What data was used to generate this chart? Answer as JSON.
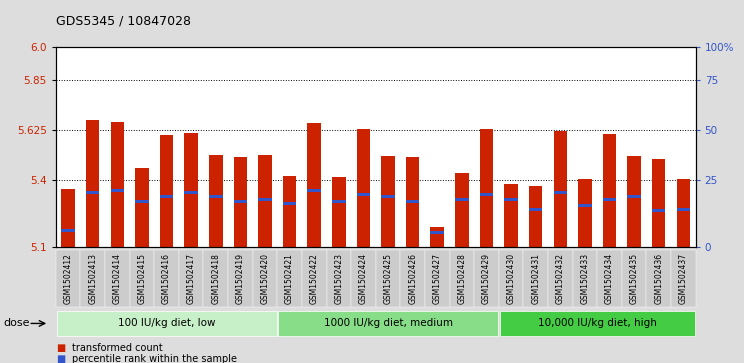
{
  "title": "GDS5345 / 10847028",
  "samples": [
    "GSM1502412",
    "GSM1502413",
    "GSM1502414",
    "GSM1502415",
    "GSM1502416",
    "GSM1502417",
    "GSM1502418",
    "GSM1502419",
    "GSM1502420",
    "GSM1502421",
    "GSM1502422",
    "GSM1502423",
    "GSM1502424",
    "GSM1502425",
    "GSM1502426",
    "GSM1502427",
    "GSM1502428",
    "GSM1502429",
    "GSM1502430",
    "GSM1502431",
    "GSM1502432",
    "GSM1502433",
    "GSM1502434",
    "GSM1502435",
    "GSM1502436",
    "GSM1502437"
  ],
  "bar_heights": [
    5.36,
    5.67,
    5.665,
    5.455,
    5.605,
    5.615,
    5.515,
    5.505,
    5.515,
    5.42,
    5.66,
    5.415,
    5.63,
    5.51,
    5.505,
    5.19,
    5.435,
    5.63,
    5.385,
    5.375,
    5.62,
    5.405,
    5.61,
    5.51,
    5.495,
    5.405
  ],
  "blue_marker_positions": [
    5.175,
    5.345,
    5.355,
    5.305,
    5.325,
    5.345,
    5.325,
    5.305,
    5.315,
    5.295,
    5.355,
    5.305,
    5.335,
    5.325,
    5.305,
    5.165,
    5.315,
    5.335,
    5.315,
    5.27,
    5.345,
    5.285,
    5.315,
    5.325,
    5.265,
    5.27
  ],
  "y_min": 5.1,
  "y_max": 6.0,
  "y_ticks_left": [
    5.1,
    5.4,
    5.625,
    5.85,
    6.0
  ],
  "y_ticks_right_vals": [
    5.1,
    5.4,
    5.625,
    5.85,
    6.0
  ],
  "y_ticks_right_labels": [
    "0",
    "25",
    "50",
    "75",
    "100%"
  ],
  "bar_color": "#cc2200",
  "blue_color": "#3355cc",
  "bar_width": 0.55,
  "groups": [
    {
      "label": "100 IU/kg diet, low",
      "start": 0,
      "end": 9,
      "color": "#c8f0c8"
    },
    {
      "label": "1000 IU/kg diet, medium",
      "start": 9,
      "end": 18,
      "color": "#88dd88"
    },
    {
      "label": "10,000 IU/kg diet, high",
      "start": 18,
      "end": 26,
      "color": "#44cc44"
    }
  ],
  "legend_items": [
    {
      "label": "transformed count",
      "color": "#cc2200"
    },
    {
      "label": "percentile rank within the sample",
      "color": "#3355cc"
    }
  ],
  "dose_label": "dose",
  "bg_color": "#dddddd",
  "plot_bg": "#ffffff",
  "tick_bg_color": "#cccccc"
}
